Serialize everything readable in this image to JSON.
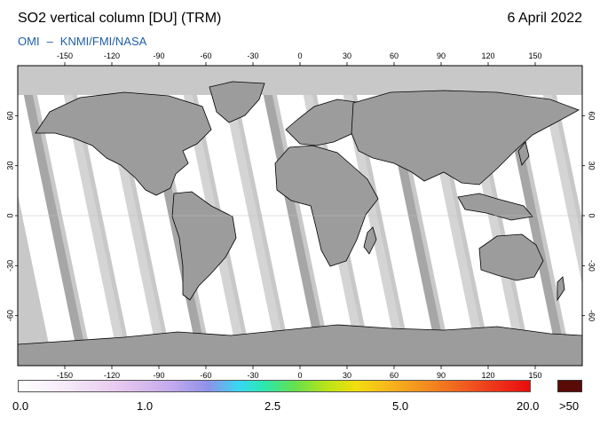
{
  "header": {
    "title": "SO2 vertical column [DU] (TRM)",
    "date": "6 April 2022",
    "instrument": "OMI",
    "separator": "–",
    "agency": "KNMI/FMI/NASA"
  },
  "map": {
    "projection": "equirectangular",
    "lon_range": [
      -180,
      180
    ],
    "lat_range": [
      -90,
      90
    ],
    "lon_ticks": [
      "-150",
      "-120",
      "-90",
      "-60",
      "-30",
      "0",
      "30",
      "60",
      "90",
      "120",
      "150"
    ],
    "lat_ticks_left": [
      "60",
      "30",
      "0",
      "-30",
      "-60"
    ],
    "lat_ticks_right": [
      "60",
      "30",
      "0",
      "-30",
      "-60"
    ],
    "colors": {
      "no_data": "#c8c8c8",
      "swath_dark": "#a6a6a6",
      "swath_light": "#d4d4d4",
      "valid_low": "#ffffff",
      "coastline": "#000000"
    }
  },
  "colorbar": {
    "labels": [
      "0.0",
      "1.0",
      "2.5",
      "5.0",
      "20.0"
    ],
    "overflow_label": ">50",
    "overflow_color": "#5a0a07"
  }
}
